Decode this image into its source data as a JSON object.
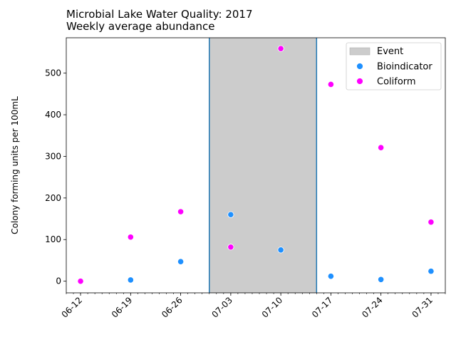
{
  "chart_data": {
    "type": "scatter",
    "title": "Microbial Lake Water Quality: 2017",
    "subtitle": "Weekly average abundance",
    "xlabel": "",
    "ylabel": "Colony forming units per 100mL",
    "x_ticks": [
      "06-12",
      "06-19",
      "06-26",
      "07-03",
      "07-10",
      "07-17",
      "07-24",
      "07-31"
    ],
    "y_ticks": [
      0,
      100,
      200,
      300,
      400,
      500
    ],
    "xlim": [
      "2017-06-10",
      "2017-08-02"
    ],
    "ylim": [
      -28,
      585
    ],
    "grid": false,
    "legend_position": "top-right",
    "event_span": {
      "name": "Event",
      "start": "2017-06-30",
      "end": "2017-07-15",
      "fill_color": "#cccccc",
      "edge_color": "#1f77b4"
    },
    "series": [
      {
        "name": "Bioindicator",
        "color": "#1e90ff",
        "x": [
          "2017-06-12",
          "2017-06-19",
          "2017-06-26",
          "2017-07-03",
          "2017-07-10",
          "2017-07-17",
          "2017-07-24",
          "2017-07-31"
        ],
        "values": [
          0,
          3,
          47,
          160,
          75,
          12,
          4,
          24
        ]
      },
      {
        "name": "Coliform",
        "color": "#ff00ff",
        "x": [
          "2017-06-12",
          "2017-06-19",
          "2017-06-26",
          "2017-07-03",
          "2017-07-10",
          "2017-07-17",
          "2017-07-24",
          "2017-07-31"
        ],
        "values": [
          0,
          106,
          167,
          82,
          559,
          473,
          321,
          142
        ]
      }
    ]
  }
}
